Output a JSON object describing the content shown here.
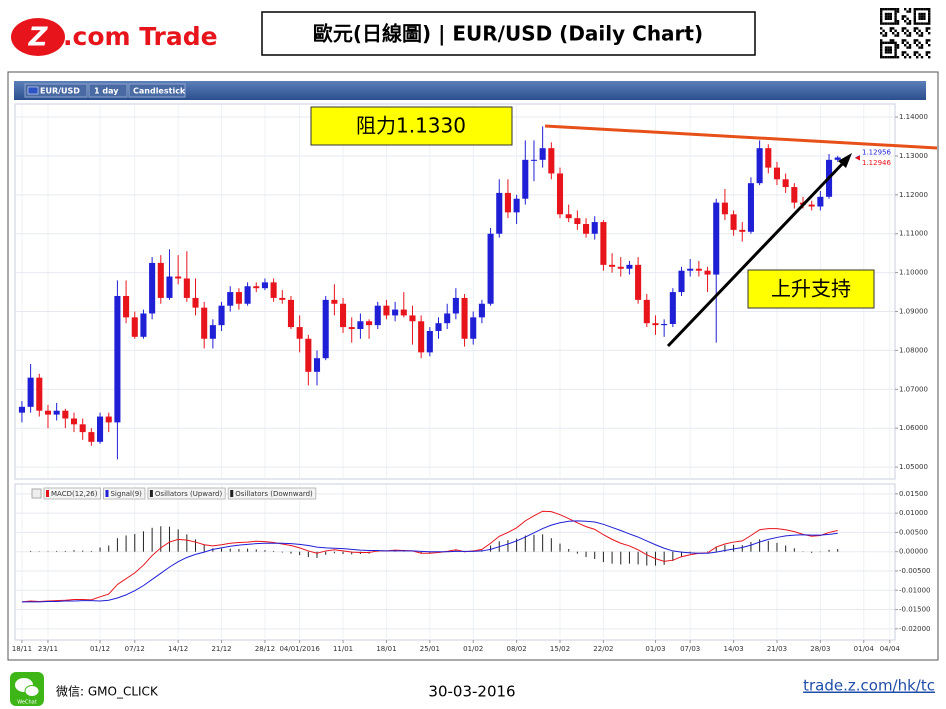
{
  "header": {
    "logo_mark": "Z",
    "logo_text": ".com Trade",
    "title": "歐元(日線圖) | EUR/USD  (Daily Chart)"
  },
  "toolbar": [
    "EUR/USD",
    "1 day",
    "Candlestick"
  ],
  "chart_data": [
    {
      "type": "candlestick",
      "up_color": "#1f1fd6",
      "down_color": "#e8141c",
      "grid": true,
      "xlim": [
        -0.8,
        100.6
      ],
      "ylim": [
        1.0472,
        1.1431
      ],
      "yticks": [
        {
          "value": 1.05,
          "label": "1.05000"
        },
        {
          "value": 1.06,
          "label": "1.06000"
        },
        {
          "value": 1.07,
          "label": "1.07000"
        },
        {
          "value": 1.08,
          "label": "1.08000"
        },
        {
          "value": 1.09,
          "label": "1.09000"
        },
        {
          "value": 1.1,
          "label": "1.10000"
        },
        {
          "value": 1.11,
          "label": "1.11000"
        },
        {
          "value": 1.12,
          "label": "1.12000"
        },
        {
          "value": 1.13,
          "label": "1.13000"
        },
        {
          "value": 1.14,
          "label": "1.14000"
        }
      ],
      "price_labels": [
        {
          "value": 1.12956,
          "label": "1.12956",
          "color": "#1f1fd6"
        },
        {
          "value": 1.12946,
          "label": "1.12946",
          "color": "#e8141c"
        }
      ],
      "annotations": [
        "阻力1.1330",
        "上升支持"
      ],
      "ohlc": [
        [
          1.064,
          1.067,
          1.0615,
          1.0655
        ],
        [
          1.0655,
          1.0765,
          1.064,
          1.073
        ],
        [
          1.073,
          1.074,
          1.063,
          1.0645
        ],
        [
          1.0645,
          1.066,
          1.06,
          1.0635
        ],
        [
          1.0635,
          1.0665,
          1.062,
          1.0645
        ],
        [
          1.0645,
          1.065,
          1.06,
          1.0625
        ],
        [
          1.0625,
          1.064,
          1.059,
          1.061
        ],
        [
          1.061,
          1.0625,
          1.057,
          1.059
        ],
        [
          1.059,
          1.06,
          1.0555,
          1.0565
        ],
        [
          1.0565,
          1.064,
          1.056,
          1.063
        ],
        [
          1.063,
          1.064,
          1.059,
          1.0615
        ],
        [
          1.0615,
          1.098,
          1.052,
          1.094
        ],
        [
          1.094,
          1.098,
          1.087,
          1.0885
        ],
        [
          1.0885,
          1.09,
          1.083,
          1.0835
        ],
        [
          1.0835,
          1.0905,
          1.083,
          1.0895
        ],
        [
          1.0895,
          1.104,
          1.088,
          1.1025
        ],
        [
          1.1025,
          1.1045,
          1.092,
          1.0935
        ],
        [
          1.0935,
          1.106,
          1.093,
          1.099
        ],
        [
          1.099,
          1.1045,
          1.097,
          1.0985
        ],
        [
          1.0985,
          1.1055,
          1.0925,
          1.0935
        ],
        [
          1.0935,
          1.0985,
          1.089,
          1.091
        ],
        [
          1.091,
          1.0925,
          1.0805,
          1.083
        ],
        [
          1.083,
          1.088,
          1.0805,
          1.0865
        ],
        [
          1.0865,
          1.0925,
          1.085,
          1.0915
        ],
        [
          1.0915,
          1.0965,
          1.09,
          1.095
        ],
        [
          1.095,
          1.096,
          1.0905,
          1.092
        ],
        [
          1.092,
          1.0975,
          1.0915,
          1.0965
        ],
        [
          1.0965,
          1.0975,
          1.095,
          1.096
        ],
        [
          1.096,
          1.0985,
          1.0955,
          1.0975
        ],
        [
          1.0975,
          1.0985,
          1.0925,
          1.0935
        ],
        [
          1.0935,
          1.0955,
          1.092,
          1.093
        ],
        [
          1.093,
          1.094,
          1.0855,
          1.086
        ],
        [
          1.086,
          1.089,
          1.0795,
          1.083
        ],
        [
          1.083,
          1.084,
          1.071,
          1.0745
        ],
        [
          1.0745,
          1.08,
          1.071,
          1.078
        ],
        [
          1.078,
          1.094,
          1.0775,
          1.093
        ],
        [
          1.093,
          1.097,
          1.089,
          1.092
        ],
        [
          1.092,
          1.0935,
          1.0845,
          1.086
        ],
        [
          1.086,
          1.0885,
          1.082,
          1.0855
        ],
        [
          1.0855,
          1.0895,
          1.083,
          1.0875
        ],
        [
          1.0875,
          1.088,
          1.083,
          1.0865
        ],
        [
          1.0865,
          1.0925,
          1.0855,
          1.0915
        ],
        [
          1.0915,
          1.093,
          1.088,
          1.089
        ],
        [
          1.089,
          1.0925,
          1.0875,
          1.0905
        ],
        [
          1.0905,
          1.095,
          1.0885,
          1.089
        ],
        [
          1.089,
          1.0915,
          1.0815,
          1.0875
        ],
        [
          1.0875,
          1.089,
          1.078,
          1.0795
        ],
        [
          1.0795,
          1.086,
          1.0785,
          1.085
        ],
        [
          1.085,
          1.0885,
          1.083,
          1.087
        ],
        [
          1.087,
          1.092,
          1.0855,
          1.0895
        ],
        [
          1.0895,
          1.096,
          1.088,
          1.0935
        ],
        [
          1.0935,
          1.0945,
          1.081,
          1.083
        ],
        [
          1.083,
          1.09,
          1.0815,
          1.0885
        ],
        [
          1.0885,
          1.093,
          1.087,
          1.092
        ],
        [
          1.092,
          1.1115,
          1.0915,
          1.11
        ],
        [
          1.11,
          1.124,
          1.109,
          1.1205
        ],
        [
          1.1205,
          1.124,
          1.114,
          1.1155
        ],
        [
          1.1155,
          1.12,
          1.1125,
          1.119
        ],
        [
          1.119,
          1.134,
          1.1175,
          1.129
        ],
        [
          1.129,
          1.134,
          1.1235,
          1.129
        ],
        [
          1.129,
          1.1376,
          1.127,
          1.132
        ],
        [
          1.132,
          1.1335,
          1.124,
          1.1255
        ],
        [
          1.1255,
          1.127,
          1.114,
          1.115
        ],
        [
          1.115,
          1.1175,
          1.113,
          1.114
        ],
        [
          1.114,
          1.116,
          1.111,
          1.1125
        ],
        [
          1.1125,
          1.114,
          1.109,
          1.11
        ],
        [
          1.11,
          1.1145,
          1.1085,
          1.113
        ],
        [
          1.113,
          1.1135,
          1.1005,
          1.102
        ],
        [
          1.102,
          1.105,
          1.1,
          1.1015
        ],
        [
          1.1015,
          1.104,
          1.099,
          1.101
        ],
        [
          1.101,
          1.103,
          1.0995,
          1.102
        ],
        [
          1.102,
          1.104,
          1.092,
          1.093
        ],
        [
          1.093,
          1.0945,
          1.086,
          1.087
        ],
        [
          1.087,
          1.089,
          1.084,
          1.0865
        ],
        [
          1.0865,
          1.088,
          1.0835,
          1.0868
        ],
        [
          1.0868,
          1.096,
          1.086,
          1.095
        ],
        [
          1.095,
          1.1015,
          1.094,
          1.1005
        ],
        [
          1.1005,
          1.1035,
          1.099,
          1.101
        ],
        [
          1.101,
          1.103,
          1.099,
          1.1005
        ],
        [
          1.1005,
          1.1015,
          1.095,
          1.0995
        ],
        [
          1.0995,
          1.119,
          1.082,
          1.118
        ],
        [
          1.118,
          1.1215,
          1.1135,
          1.115
        ],
        [
          1.115,
          1.116,
          1.1095,
          1.111
        ],
        [
          1.111,
          1.113,
          1.108,
          1.1105
        ],
        [
          1.1105,
          1.1245,
          1.11,
          1.123
        ],
        [
          1.123,
          1.134,
          1.1225,
          1.132
        ],
        [
          1.132,
          1.133,
          1.1255,
          1.127
        ],
        [
          1.127,
          1.1285,
          1.1225,
          1.124
        ],
        [
          1.124,
          1.1255,
          1.1205,
          1.122
        ],
        [
          1.122,
          1.123,
          1.1165,
          1.118
        ],
        [
          1.118,
          1.1195,
          1.1165,
          1.1175
        ],
        [
          1.1175,
          1.1185,
          1.116,
          1.117
        ],
        [
          1.117,
          1.121,
          1.116,
          1.1195
        ],
        [
          1.1195,
          1.1305,
          1.119,
          1.129
        ],
        [
          1.129,
          1.13,
          1.1285,
          1.1296
        ]
      ]
    },
    {
      "type": "macd",
      "grid": true,
      "xlim": [
        -0.8,
        100.6
      ],
      "ylim": [
        -0.0229,
        0.0173
      ],
      "yticks": [
        {
          "value": 0.015,
          "label": "0.01500"
        },
        {
          "value": 0.01,
          "label": "0.01000"
        },
        {
          "value": 0.005,
          "label": "0.00500"
        },
        {
          "value": 0,
          "label": "0.00000"
        },
        {
          "value": -0.005,
          "label": "-0.00500"
        },
        {
          "value": -0.01,
          "label": "-0.01000"
        },
        {
          "value": -0.015,
          "label": "-0.01500"
        },
        {
          "value": -0.02,
          "label": "-0.02000"
        }
      ],
      "xticks": [
        {
          "value": 0,
          "label": "18/11"
        },
        {
          "value": 3,
          "label": "23/11"
        },
        {
          "value": 9,
          "label": "01/12"
        },
        {
          "value": 13,
          "label": "07/12"
        },
        {
          "value": 18,
          "label": "14/12"
        },
        {
          "value": 23,
          "label": "21/12"
        },
        {
          "value": 28,
          "label": "28/12"
        },
        {
          "value": 32,
          "label": "04/01/2016"
        },
        {
          "value": 37,
          "label": "11/01"
        },
        {
          "value": 42,
          "label": "18/01"
        },
        {
          "value": 47,
          "label": "25/01"
        },
        {
          "value": 52,
          "label": "01/02"
        },
        {
          "value": 57,
          "label": "08/02"
        },
        {
          "value": 62,
          "label": "15/02"
        },
        {
          "value": 67,
          "label": "22/02"
        },
        {
          "value": 73,
          "label": "01/03"
        },
        {
          "value": 77,
          "label": "07/03"
        },
        {
          "value": 82,
          "label": "14/03"
        },
        {
          "value": 87,
          "label": "21/03"
        },
        {
          "value": 92,
          "label": "28/03"
        },
        {
          "value": 97,
          "label": "01/04"
        },
        {
          "value": 100,
          "label": "04/04"
        }
      ],
      "series": [
        {
          "name": "MACD(12,26)",
          "color": "#e8141c",
          "values": [
            -0.013,
            -0.0128,
            -0.0129,
            -0.0128,
            -0.0127,
            -0.0126,
            -0.0124,
            -0.0124,
            -0.0125,
            -0.0117,
            -0.011,
            -0.0085,
            -0.007,
            -0.0055,
            -0.0035,
            -0.001,
            0.001,
            0.0025,
            0.0032,
            0.003,
            0.0025,
            0.0018,
            0.0015,
            0.0018,
            0.0022,
            0.0024,
            0.0025,
            0.0027,
            0.0026,
            0.0024,
            0.002,
            0.0016,
            0.001,
            0.0002,
            -0.0004,
            0.0002,
            0.0005,
            0.0002,
            -0.0001,
            -0.0002,
            -0.0002,
            0.0002,
            0.0002,
            0.0004,
            0.0003,
            0.0002,
            -0.0004,
            -0.0004,
            -0.0002,
            0.0001,
            0.0005,
            0.0,
            0.0002,
            0.0006,
            0.0022,
            0.004,
            0.005,
            0.0062,
            0.008,
            0.0093,
            0.0105,
            0.0104,
            0.0096,
            0.0086,
            0.0075,
            0.0065,
            0.0058,
            0.0044,
            0.0032,
            0.0022,
            0.0015,
            0.0005,
            -0.0008,
            -0.0018,
            -0.0025,
            -0.0022,
            -0.0013,
            -0.0008,
            -0.0004,
            -0.0003,
            0.0012,
            0.002,
            0.0025,
            0.0028,
            0.0042,
            0.0057,
            0.006,
            0.006,
            0.0057,
            0.0052,
            0.0045,
            0.004,
            0.0042,
            0.005,
            0.0055
          ]
        },
        {
          "name": "Signal(9)",
          "color": "#1f1fd6",
          "values": [
            -0.013,
            -0.013,
            -0.013,
            -0.0129,
            -0.0129,
            -0.0128,
            -0.0128,
            -0.0127,
            -0.0127,
            -0.0128,
            -0.0126,
            -0.012,
            -0.0112,
            -0.0101,
            -0.0088,
            -0.0072,
            -0.0056,
            -0.004,
            -0.0026,
            -0.0015,
            -0.0007,
            -0.0001,
            0.0006,
            0.001,
            0.0014,
            0.0017,
            0.0019,
            0.0021,
            0.0022,
            0.0022,
            0.0022,
            0.0021,
            0.0019,
            0.0016,
            0.0012,
            0.001,
            0.0009,
            0.0008,
            0.0006,
            0.0004,
            0.0003,
            0.0003,
            0.0002,
            0.0002,
            0.0002,
            0.0002,
            0.0001,
            0.0,
            0.0,
            0.0,
            0.0001,
            0.0001,
            0.0001,
            0.0002,
            0.0006,
            0.0013,
            0.002,
            0.0028,
            0.0038,
            0.0049,
            0.006,
            0.0069,
            0.0075,
            0.0079,
            0.008,
            0.0079,
            0.0077,
            0.0071,
            0.0063,
            0.0055,
            0.0046,
            0.0038,
            0.0028,
            0.0018,
            0.0009,
            0.0002,
            -0.0001,
            -0.0003,
            -0.0004,
            -0.0004,
            -0.0001,
            0.0003,
            0.0007,
            0.0011,
            0.0017,
            0.0025,
            0.0032,
            0.0037,
            0.0041,
            0.0043,
            0.0044,
            0.0043,
            0.0043,
            0.0045,
            0.0048
          ]
        },
        {
          "name": "Osillators (Upward)",
          "color": "#222222",
          "histogram": true,
          "values": [
            0.0,
            0.0002,
            0.0001,
            0.0001,
            0.0002,
            0.0002,
            0.0004,
            0.0003,
            0.0002,
            0.0011,
            0.0016,
            0.0035,
            0.0042,
            0.0046,
            0.0053,
            0.0062,
            0.0066,
            0.0065,
            0.0058,
            0.0045,
            0.0032,
            0.0019,
            0.0009,
            0.0008,
            0.0008,
            0.0007,
            0.0008,
            0.0006,
            0.0004,
            0.0002,
            -0.0002,
            -0.0005,
            -0.0009,
            -0.0014,
            -0.0016,
            -0.0008,
            -0.0004,
            -0.0006,
            -0.0007,
            -0.0006,
            -0.0005,
            -0.0001,
            0.0,
            0.0002,
            0.0001,
            0.0,
            -0.0005,
            -0.0004,
            -0.0002,
            0.0001,
            0.0004,
            -0.0001,
            0.0001,
            0.0004,
            0.0016,
            0.0027,
            0.003,
            0.0034,
            0.0042,
            0.0044,
            0.0045,
            0.0035,
            0.0021,
            0.0007,
            -0.0005,
            -0.0014,
            -0.0019,
            -0.0027,
            -0.0031,
            -0.0033,
            -0.0031,
            -0.0033,
            -0.0036,
            -0.0036,
            -0.0034,
            -0.0024,
            -0.0012,
            -0.0005,
            0.0,
            0.0001,
            0.0013,
            0.0017,
            0.0018,
            0.0017,
            0.0025,
            0.0032,
            0.0028,
            0.0023,
            0.0016,
            0.0009,
            0.0001,
            -0.0003,
            -0.0001,
            0.0005,
            0.0007
          ]
        },
        {
          "name": "Osillators (Downward)",
          "color": "#222222"
        }
      ]
    }
  ],
  "footer": {
    "wechat_icon": "WeChat",
    "wechat": "微信: GMO_CLICK",
    "date": "30-03-2016",
    "link": "trade.z.com/hk/tc"
  }
}
